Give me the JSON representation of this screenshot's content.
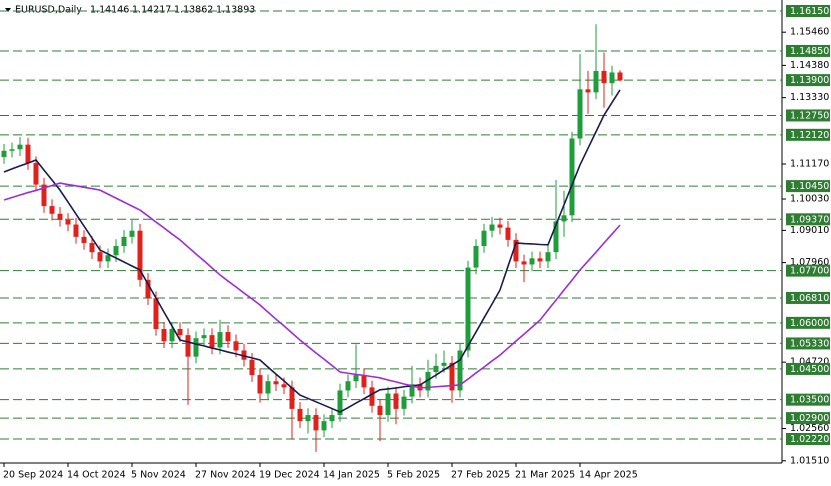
{
  "chart_data": {
    "type": "candlestick",
    "title": "EURUSD,Daily",
    "ohlc_header": [
      1.14146,
      1.14217,
      1.13862,
      1.13893
    ],
    "categories": [
      "20 Sep 2024",
      null,
      null,
      null,
      null,
      null,
      null,
      null,
      "14 Oct 2024",
      null,
      null,
      null,
      null,
      null,
      null,
      null,
      "5 Nov 2024",
      null,
      null,
      null,
      null,
      null,
      null,
      null,
      "27 Nov 2024",
      null,
      null,
      null,
      null,
      null,
      null,
      null,
      "19 Dec 2024",
      null,
      null,
      null,
      null,
      null,
      null,
      null,
      "14 Jan 2025",
      null,
      null,
      null,
      null,
      null,
      null,
      null,
      "5 Feb 2025",
      null,
      null,
      null,
      null,
      null,
      null,
      null,
      "27 Feb 2025",
      null,
      null,
      null,
      null,
      null,
      null,
      null,
      "21 Mar 2025",
      null,
      null,
      null,
      null,
      null,
      null,
      null,
      "14 Apr 2025",
      null,
      null,
      null,
      null,
      null
    ],
    "open": [
      1.114,
      1.116,
      1.1165,
      1.118,
      1.112,
      1.105,
      1.098,
      1.0955,
      1.0935,
      1.092,
      1.088,
      1.086,
      1.083,
      1.08,
      1.082,
      1.085,
      1.088,
      1.09,
      1.074,
      1.068,
      1.058,
      1.054,
      1.058,
      1.056,
      1.049,
      1.055,
      1.056,
      1.052,
      1.057,
      1.054,
      1.051,
      1.048,
      1.043,
      1.037,
      1.041,
      1.04,
      1.039,
      1.032,
      1.028,
      1.03,
      1.025,
      1.028,
      1.03,
      1.038,
      1.041,
      1.043,
      1.039,
      1.033,
      1.03,
      1.037,
      1.032,
      1.036,
      1.04,
      1.038,
      1.044,
      1.046,
      1.047,
      1.038,
      1.051,
      1.078,
      1.085,
      1.09,
      1.092,
      1.091,
      1.087,
      1.08,
      1.079,
      1.081,
      1.08,
      1.083,
      1.093,
      1.095,
      1.12,
      1.136,
      1.135,
      1.142,
      1.138,
      1.1415
    ],
    "high": [
      1.1182,
      1.1187,
      1.1205,
      1.1202,
      1.1142,
      1.1072,
      1.1002,
      1.0977,
      1.0957,
      1.0942,
      1.0902,
      1.0882,
      1.0852,
      1.0842,
      1.0872,
      1.0902,
      1.0935,
      1.0922,
      1.0762,
      1.0702,
      1.0602,
      1.0602,
      1.0602,
      1.0582,
      1.0572,
      1.0582,
      1.0582,
      1.061,
      1.0592,
      1.0562,
      1.0532,
      1.0502,
      1.0452,
      1.0432,
      1.0432,
      1.0422,
      1.0412,
      1.0342,
      1.0322,
      1.0322,
      1.0302,
      1.0322,
      1.0402,
      1.0432,
      1.053,
      1.0452,
      1.0412,
      1.0352,
      1.0392,
      1.0392,
      1.0382,
      1.046,
      1.0422,
      1.048,
      1.05,
      1.051,
      1.0492,
      1.0532,
      1.0802,
      1.0872,
      1.0922,
      1.0945,
      1.0942,
      1.0932,
      1.0892,
      1.0822,
      1.0832,
      1.0832,
      1.0852,
      1.1065,
      1.103,
      1.1222,
      1.1475,
      1.142,
      1.1572,
      1.148,
      1.1437,
      1.1422
    ],
    "low": [
      1.1118,
      1.1138,
      1.1143,
      1.1098,
      1.1028,
      1.0958,
      1.0933,
      1.0913,
      1.0898,
      1.0858,
      1.0838,
      1.0808,
      1.0778,
      1.0778,
      1.0798,
      1.0828,
      1.0858,
      1.0718,
      1.0658,
      1.0558,
      1.0518,
      1.0518,
      1.0538,
      1.0333,
      1.0468,
      1.0528,
      1.0498,
      1.0498,
      1.0518,
      1.0488,
      1.0458,
      1.0408,
      1.034,
      1.0348,
      1.0378,
      1.0368,
      1.022,
      1.0258,
      1.024,
      1.018,
      1.0228,
      1.0258,
      1.0278,
      1.0358,
      1.0388,
      1.0368,
      1.0308,
      1.0215,
      1.0278,
      1.027,
      1.0298,
      1.0338,
      1.0358,
      1.0358,
      1.0418,
      1.0438,
      1.034,
      1.0358,
      1.0488,
      1.0758,
      1.0828,
      1.0878,
      1.0888,
      1.0848,
      1.0778,
      1.0732,
      1.0768,
      1.0778,
      1.0778,
      1.0808,
      1.088,
      1.0928,
      1.1178,
      1.128,
      1.1328,
      1.13,
      1.134,
      1.1386
    ],
    "close": [
      1.116,
      1.1165,
      1.118,
      1.112,
      1.105,
      1.098,
      1.0955,
      1.0935,
      1.092,
      1.088,
      1.086,
      1.083,
      1.08,
      1.082,
      1.085,
      1.088,
      1.09,
      1.074,
      1.068,
      1.058,
      1.054,
      1.058,
      1.056,
      1.049,
      1.055,
      1.056,
      1.052,
      1.057,
      1.054,
      1.051,
      1.048,
      1.043,
      1.037,
      1.041,
      1.04,
      1.039,
      1.032,
      1.028,
      1.03,
      1.025,
      1.028,
      1.03,
      1.038,
      1.041,
      1.043,
      1.039,
      1.033,
      1.03,
      1.037,
      1.032,
      1.036,
      1.04,
      1.038,
      1.044,
      1.046,
      1.047,
      1.038,
      1.051,
      1.078,
      1.085,
      1.09,
      1.092,
      1.091,
      1.087,
      1.08,
      1.079,
      1.081,
      1.08,
      1.083,
      1.093,
      1.095,
      1.12,
      1.136,
      1.135,
      1.142,
      1.138,
      1.1415,
      1.1389
    ],
    "up_color": "#1e9e3a",
    "down_color": "#e0201b",
    "lines": [
      {
        "color": "#1b1b4d",
        "values": [
          1.1091,
          1.1101,
          1.1111,
          1.112,
          1.113,
          1.1097,
          1.1065,
          1.1032,
          1.0993,
          1.0954,
          1.0915,
          1.0876,
          1.0837,
          1.0824,
          1.0811,
          1.0798,
          1.0785,
          1.0772,
          1.0726,
          1.0681,
          1.0635,
          1.059,
          1.0544,
          1.0538,
          1.0531,
          1.0525,
          1.0518,
          1.0512,
          1.0505,
          1.0499,
          1.0492,
          1.0486,
          1.0479,
          1.0456,
          1.0433,
          1.0411,
          1.0388,
          1.0365,
          1.0354,
          1.0343,
          1.0332,
          1.0321,
          1.031,
          1.0324,
          1.0339,
          1.0353,
          1.0368,
          1.0382,
          1.0385,
          1.0388,
          1.0392,
          1.0395,
          1.0398,
          1.0414,
          1.043,
          1.0447,
          1.0463,
          1.0479,
          1.0525,
          1.057,
          1.0616,
          1.0661,
          1.0707,
          1.0784,
          1.086,
          1.0858,
          1.0857,
          1.0855,
          1.0854,
          1.0919,
          1.0984,
          1.1049,
          1.1114,
          1.1168,
          1.1222,
          1.1276,
          1.1317,
          1.1358
        ]
      },
      {
        "color": "#9b2fd6",
        "values": [
          1.1,
          1.1008,
          1.1016,
          1.1024,
          1.1031,
          1.1039,
          1.1047,
          1.1055,
          1.105,
          1.1046,
          1.1041,
          1.1037,
          1.1032,
          1.1019,
          1.1006,
          1.0993,
          1.098,
          1.0967,
          1.0948,
          1.0928,
          1.0909,
          1.0889,
          1.087,
          1.0847,
          1.0824,
          1.0802,
          1.0779,
          1.0756,
          1.0736,
          1.0717,
          1.0697,
          1.0678,
          1.0658,
          1.0635,
          1.0612,
          1.059,
          1.0567,
          1.0544,
          1.0523,
          1.0502,
          1.0482,
          1.0461,
          1.044,
          1.0436,
          1.0432,
          1.0429,
          1.0425,
          1.0421,
          1.0414,
          1.0408,
          1.0401,
          1.0395,
          1.0388,
          1.039,
          1.0392,
          1.0394,
          1.0396,
          1.0398,
          1.0417,
          1.0437,
          1.0456,
          1.0476,
          1.0495,
          1.0518,
          1.0541,
          1.0563,
          1.0586,
          1.0609,
          1.0642,
          1.0674,
          1.0707,
          1.0739,
          1.0772,
          1.0801,
          1.083,
          1.086,
          1.0889,
          1.0918
        ]
      }
    ],
    "ylim": [
      1.01471,
      1.16508
    ],
    "yticks": [
      {
        "value": 1.1546,
        "label": "1.15460"
      },
      {
        "value": 1.1438,
        "label": "1.14380"
      },
      {
        "value": 1.1333,
        "label": "1.13330"
      },
      {
        "value": 1.1117,
        "label": "1.11170"
      },
      {
        "value": 1.1003,
        "label": "1.10030"
      },
      {
        "value": 1.0901,
        "label": "1.09010"
      },
      {
        "value": 1.0796,
        "label": "1.07960"
      },
      {
        "value": 1.0472,
        "label": "1.04720"
      },
      {
        "value": 1.0256,
        "label": "1.02560"
      },
      {
        "value": 1.0151,
        "label": "1.01510"
      }
    ],
    "levels": [
      {
        "value": 1.1615,
        "label": "1.16150"
      },
      {
        "value": 1.1485,
        "label": "1.14850"
      },
      {
        "value": 1.139,
        "label": "1.13900"
      },
      {
        "value": 1.1275,
        "label": "1.12750"
      },
      {
        "value": 1.1212,
        "label": "1.12120"
      },
      {
        "value": 1.1045,
        "label": "1.10450"
      },
      {
        "value": 1.0937,
        "label": "1.09370"
      },
      {
        "value": 1.077,
        "label": "1.07700"
      },
      {
        "value": 1.0681,
        "label": "1.06810"
      },
      {
        "value": 1.06,
        "label": "1.06000"
      },
      {
        "value": 1.0533,
        "label": "1.05330"
      },
      {
        "value": 1.045,
        "label": "1.04500"
      },
      {
        "value": 1.035,
        "label": "1.03500"
      },
      {
        "value": 1.029,
        "label": "1.02900"
      },
      {
        "value": 1.0222,
        "label": "1.02220"
      }
    ],
    "level_color": "#2e7d32"
  }
}
